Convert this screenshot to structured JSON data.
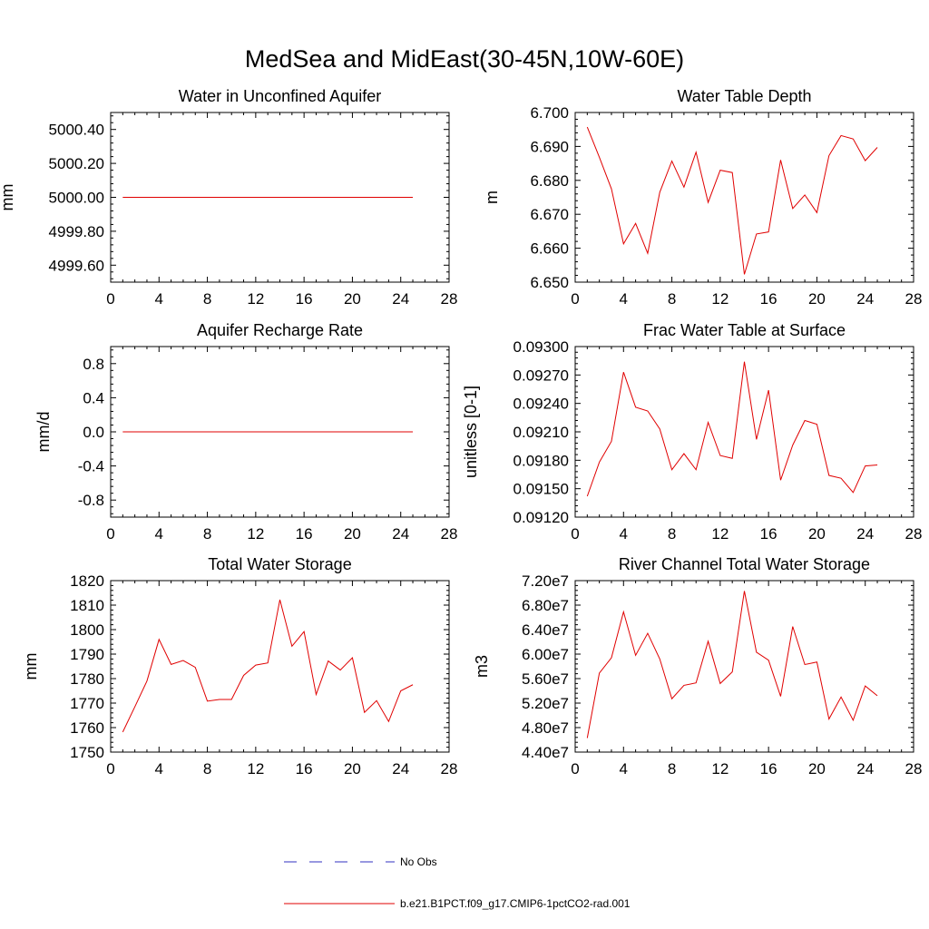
{
  "figure": {
    "title": "MedSea and MidEast(30-45N,10W-60E)"
  },
  "legend": {
    "entries": [
      {
        "label": "No Obs",
        "color": "#3030c0",
        "style": "dashed"
      },
      {
        "label": "b.e21.B1PCT.f09_g17.CMIP6-1pctCO2-rad.001",
        "color": "#e00000",
        "style": "solid"
      }
    ]
  },
  "chart_data": [
    {
      "type": "line",
      "title": "Water in Unconfined Aquifer",
      "xlabel": "",
      "ylabel": "mm",
      "xlim": [
        0,
        28
      ],
      "ylim": [
        4999.5,
        5000.5
      ],
      "xticks": [
        0,
        4,
        8,
        12,
        16,
        20,
        24,
        28
      ],
      "xtick_labels": [
        "0",
        "4",
        "8",
        "12",
        "16",
        "20",
        "24",
        "28"
      ],
      "yticks": [
        4999.6,
        4999.8,
        5000.0,
        5000.2,
        5000.4
      ],
      "ytick_labels": [
        "4999.60",
        "4999.80",
        "5000.00",
        "5000.20",
        "5000.40"
      ],
      "series": [
        {
          "color": "#e00000",
          "x": [
            1,
            2,
            3,
            4,
            5,
            6,
            7,
            8,
            9,
            10,
            11,
            12,
            13,
            14,
            15,
            16,
            17,
            18,
            19,
            20,
            21,
            22,
            23,
            24,
            25
          ],
          "y": [
            5000.0,
            5000.0,
            5000.0,
            5000.0,
            5000.0,
            5000.0,
            5000.0,
            5000.0,
            5000.0,
            5000.0,
            5000.0,
            5000.0,
            5000.0,
            5000.0,
            5000.0,
            5000.0,
            5000.0,
            5000.0,
            5000.0,
            5000.0,
            5000.0,
            5000.0,
            5000.0,
            5000.0,
            5000.0
          ]
        }
      ]
    },
    {
      "type": "line",
      "title": "Water Table Depth",
      "xlabel": "",
      "ylabel": "m",
      "xlim": [
        0,
        28
      ],
      "ylim": [
        6.65,
        6.7
      ],
      "xticks": [
        0,
        4,
        8,
        12,
        16,
        20,
        24,
        28
      ],
      "xtick_labels": [
        "0",
        "4",
        "8",
        "12",
        "16",
        "20",
        "24",
        "28"
      ],
      "yticks": [
        6.65,
        6.66,
        6.67,
        6.68,
        6.69,
        6.7
      ],
      "ytick_labels": [
        "6.650",
        "6.660",
        "6.670",
        "6.680",
        "6.690",
        "6.700"
      ],
      "series": [
        {
          "color": "#e00000",
          "x": [
            1,
            2,
            3,
            4,
            5,
            6,
            7,
            8,
            9,
            10,
            11,
            12,
            13,
            14,
            15,
            16,
            17,
            18,
            19,
            20,
            21,
            22,
            23,
            24,
            25
          ],
          "y": [
            6.6957,
            6.6868,
            6.6775,
            6.6613,
            6.6673,
            6.6585,
            6.6765,
            6.6857,
            6.678,
            6.6883,
            6.6735,
            6.683,
            6.6823,
            6.6523,
            6.6642,
            6.6648,
            6.686,
            6.6717,
            6.6757,
            6.6705,
            6.6873,
            6.6932,
            6.6922,
            6.6858,
            6.6897
          ]
        }
      ]
    },
    {
      "type": "line",
      "title": "Aquifer Recharge Rate",
      "xlabel": "",
      "ylabel": "mm/d",
      "xlim": [
        0,
        28
      ],
      "ylim": [
        -1.0,
        1.0
      ],
      "xticks": [
        0,
        4,
        8,
        12,
        16,
        20,
        24,
        28
      ],
      "xtick_labels": [
        "0",
        "4",
        "8",
        "12",
        "16",
        "20",
        "24",
        "28"
      ],
      "yticks": [
        -0.8,
        -0.4,
        0.0,
        0.4,
        0.8
      ],
      "ytick_labels": [
        "-0.8",
        "-0.4",
        "0.0",
        "0.4",
        "0.8"
      ],
      "series": [
        {
          "color": "#e00000",
          "x": [
            1,
            2,
            3,
            4,
            5,
            6,
            7,
            8,
            9,
            10,
            11,
            12,
            13,
            14,
            15,
            16,
            17,
            18,
            19,
            20,
            21,
            22,
            23,
            24,
            25
          ],
          "y": [
            0,
            0,
            0,
            0,
            0,
            0,
            0,
            0,
            0,
            0,
            0,
            0,
            0,
            0,
            0,
            0,
            0,
            0,
            0,
            0,
            0,
            0,
            0,
            0,
            0
          ]
        }
      ]
    },
    {
      "type": "line",
      "title": "Frac Water Table at Surface",
      "xlabel": "",
      "ylabel": "unitless [0-1]",
      "xlim": [
        0,
        28
      ],
      "ylim": [
        0.0912,
        0.093
      ],
      "xticks": [
        0,
        4,
        8,
        12,
        16,
        20,
        24,
        28
      ],
      "xtick_labels": [
        "0",
        "4",
        "8",
        "12",
        "16",
        "20",
        "24",
        "28"
      ],
      "yticks": [
        0.0912,
        0.0915,
        0.0918,
        0.0921,
        0.0924,
        0.0927,
        0.093
      ],
      "ytick_labels": [
        "0.09120",
        "0.09150",
        "0.09180",
        "0.09210",
        "0.09240",
        "0.09270",
        "0.09300"
      ],
      "series": [
        {
          "color": "#e00000",
          "x": [
            1,
            2,
            3,
            4,
            5,
            6,
            7,
            8,
            9,
            10,
            11,
            12,
            13,
            14,
            15,
            16,
            17,
            18,
            19,
            20,
            21,
            22,
            23,
            24,
            25
          ],
          "y": [
            0.09142,
            0.09178,
            0.092,
            0.09273,
            0.09236,
            0.09232,
            0.09213,
            0.0917,
            0.09187,
            0.0917,
            0.0922,
            0.09185,
            0.09182,
            0.09284,
            0.09202,
            0.09254,
            0.09159,
            0.09196,
            0.09222,
            0.09218,
            0.09164,
            0.09161,
            0.09146,
            0.09174,
            0.09175
          ]
        }
      ]
    },
    {
      "type": "line",
      "title": "Total Water Storage",
      "xlabel": "",
      "ylabel": "mm",
      "xlim": [
        0,
        28
      ],
      "ylim": [
        1750,
        1820
      ],
      "xticks": [
        0,
        4,
        8,
        12,
        16,
        20,
        24,
        28
      ],
      "xtick_labels": [
        "0",
        "4",
        "8",
        "12",
        "16",
        "20",
        "24",
        "28"
      ],
      "yticks": [
        1750,
        1760,
        1770,
        1780,
        1790,
        1800,
        1810,
        1820
      ],
      "ytick_labels": [
        "1750",
        "1760",
        "1770",
        "1780",
        "1790",
        "1800",
        "1810",
        "1820"
      ],
      "series": [
        {
          "color": "#e00000",
          "x": [
            1,
            2,
            3,
            4,
            5,
            6,
            7,
            8,
            9,
            10,
            11,
            12,
            13,
            14,
            15,
            16,
            17,
            18,
            19,
            20,
            21,
            22,
            23,
            24,
            25
          ],
          "y": [
            1758.2,
            1768.5,
            1779,
            1796,
            1785.8,
            1787.4,
            1784.6,
            1770.8,
            1771.5,
            1771.5,
            1781.3,
            1785.5,
            1786.4,
            1812.2,
            1793.2,
            1799.2,
            1773.5,
            1787.2,
            1783.5,
            1788.5,
            1766.2,
            1771,
            1762.5,
            1775,
            1777.5
          ]
        }
      ]
    },
    {
      "type": "line",
      "title": "River Channel Total Water Storage",
      "xlabel": "",
      "ylabel": "m3",
      "xlim": [
        0,
        28
      ],
      "ylim": [
        44000000,
        72000000
      ],
      "xticks": [
        0,
        4,
        8,
        12,
        16,
        20,
        24,
        28
      ],
      "xtick_labels": [
        "0",
        "4",
        "8",
        "12",
        "16",
        "20",
        "24",
        "28"
      ],
      "yticks": [
        44000000,
        48000000,
        52000000,
        56000000,
        60000000,
        64000000,
        68000000,
        72000000
      ],
      "ytick_labels": [
        "4.40e7",
        "4.80e7",
        "5.20e7",
        "5.60e7",
        "6.00e7",
        "6.40e7",
        "6.80e7",
        "7.20e7"
      ],
      "series": [
        {
          "color": "#e00000",
          "x": [
            1,
            2,
            3,
            4,
            5,
            6,
            7,
            8,
            9,
            10,
            11,
            12,
            13,
            14,
            15,
            16,
            17,
            18,
            19,
            20,
            21,
            22,
            23,
            24,
            25
          ],
          "y": [
            46300000,
            56900000,
            59400000,
            66900000,
            59800000,
            63400000,
            59200000,
            52700000,
            54900000,
            55300000,
            62100000,
            55200000,
            57100000,
            70300000,
            60300000,
            59000000,
            53100000,
            64500000,
            58300000,
            58700000,
            49400000,
            53000000,
            49200000,
            54800000,
            53200000
          ]
        }
      ]
    }
  ]
}
